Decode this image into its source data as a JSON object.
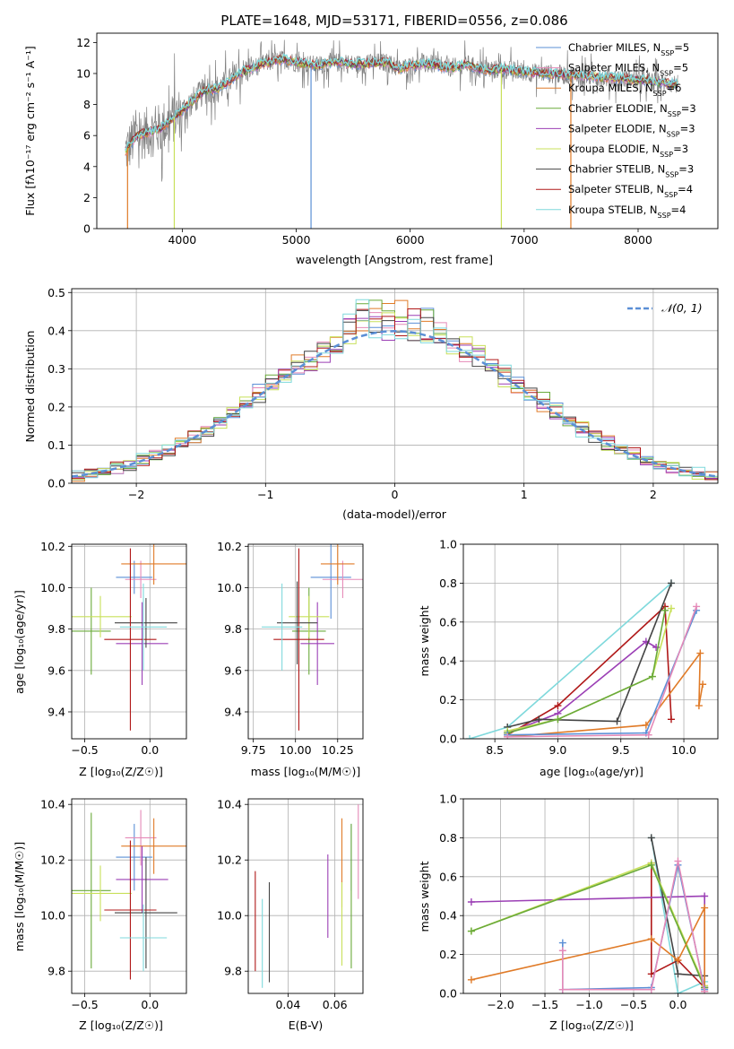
{
  "panels": {
    "spectrum": {
      "title": "PLATE=1648, MJD=53171, FIBERID=0556, z=0.086",
      "xlabel": "wavelength [Angstrom, rest frame]",
      "ylabel": "Flux [fλ10⁻¹⁷ erg cm⁻² s⁻¹ A⁻¹]"
    },
    "residuals": {
      "xlabel": "(data-model)/error",
      "ylabel": "Normed distribution",
      "gauss_label": "𝒩(0, 1)"
    },
    "age_z": {
      "xlabel": "Z [log₁₀(Z/Z☉)]",
      "ylabel": "age  [log₁₀(age/yr)]"
    },
    "age_mass": {
      "xlabel": "mass [log₁₀(M/M☉)]"
    },
    "mw_age": {
      "xlabel": "age  [log₁₀(age/yr)]",
      "ylabel": "mass weight"
    },
    "mass_z": {
      "xlabel": "Z [log₁₀(Z/Z☉)]",
      "ylabel": "mass [log₁₀(M/M☉)]"
    },
    "mass_ebv": {
      "xlabel": "E(B-V)"
    },
    "mw_z": {
      "xlabel": "Z [log₁₀(Z/Z☉)]",
      "ylabel": "mass weight"
    }
  },
  "legend": [
    {
      "label": "Chabrier MILES, N",
      "sub": "SSP",
      "tail": "=5",
      "color": "#5b8fd6"
    },
    {
      "label": "Salpeter MILES, N",
      "sub": "SSP",
      "tail": "=5",
      "color": "#e58ab8"
    },
    {
      "label": "Kroupa MILES, N",
      "sub": "SSP",
      "tail": "=6",
      "color": "#e07b28"
    },
    {
      "label": "Chabrier ELODIE, N",
      "sub": "SSP",
      "tail": "=3",
      "color": "#6aaa3a"
    },
    {
      "label": "Salpeter ELODIE, N",
      "sub": "SSP",
      "tail": "=3",
      "color": "#9b3fb5"
    },
    {
      "label": "Kroupa ELODIE, N",
      "sub": "SSP",
      "tail": "=3",
      "color": "#c8e05a"
    },
    {
      "label": "Chabrier STELIB, N",
      "sub": "SSP",
      "tail": "=3",
      "color": "#444444"
    },
    {
      "label": "Salpeter STELIB, N",
      "sub": "SSP",
      "tail": "=4",
      "color": "#b01818"
    },
    {
      "label": "Kroupa STELIB, N",
      "sub": "SSP",
      "tail": "=4",
      "color": "#7fd9dc"
    }
  ],
  "chart_data": [
    {
      "id": "spectrum",
      "type": "line",
      "xlim": [
        3250,
        8700
      ],
      "ylim": [
        0,
        12.6
      ],
      "xticks": [
        4000,
        5000,
        6000,
        7000,
        8000
      ],
      "yticks": [
        0,
        2,
        4,
        6,
        8,
        10,
        12
      ],
      "grid": false,
      "legend": "right",
      "model_points": [
        [
          3500,
          5.0
        ],
        [
          3600,
          6.0
        ],
        [
          3700,
          6.2
        ],
        [
          3800,
          6.4
        ],
        [
          3900,
          7.0
        ],
        [
          4000,
          7.6
        ],
        [
          4100,
          8.3
        ],
        [
          4200,
          8.9
        ],
        [
          4300,
          9.0
        ],
        [
          4400,
          9.4
        ],
        [
          4500,
          10.0
        ],
        [
          4600,
          10.3
        ],
        [
          4700,
          10.6
        ],
        [
          4800,
          10.8
        ],
        [
          4900,
          10.9
        ],
        [
          5000,
          10.7
        ],
        [
          5100,
          10.6
        ],
        [
          5200,
          10.5
        ],
        [
          5300,
          10.7
        ],
        [
          5400,
          10.7
        ],
        [
          5500,
          10.6
        ],
        [
          5600,
          10.6
        ],
        [
          5700,
          10.7
        ],
        [
          5800,
          10.7
        ],
        [
          5900,
          10.3
        ],
        [
          6000,
          10.5
        ],
        [
          6100,
          10.6
        ],
        [
          6200,
          10.6
        ],
        [
          6300,
          10.4
        ],
        [
          6400,
          10.4
        ],
        [
          6500,
          10.6
        ],
        [
          6600,
          10.3
        ],
        [
          6700,
          10.2
        ],
        [
          6800,
          10.3
        ],
        [
          6900,
          10.2
        ],
        [
          7000,
          10.1
        ],
        [
          7200,
          10.0
        ],
        [
          7400,
          9.9
        ],
        [
          7600,
          9.8
        ],
        [
          7800,
          9.7
        ],
        [
          8000,
          9.6
        ],
        [
          8200,
          9.4
        ],
        [
          8350,
          9.3
        ]
      ],
      "dips": [
        [
          3520,
          0
        ],
        [
          3930,
          0
        ],
        [
          5130,
          0
        ],
        [
          6800,
          0
        ],
        [
          7410,
          0
        ]
      ]
    },
    {
      "id": "residuals",
      "type": "histogram",
      "xlim": [
        -2.5,
        2.5
      ],
      "ylim": [
        0,
        0.51
      ],
      "xticks": [
        -2,
        -1,
        0,
        1,
        2
      ],
      "yticks": [
        0.0,
        0.1,
        0.2,
        0.3,
        0.4,
        0.5
      ],
      "grid": true,
      "legend": "top-right",
      "bin_width": 0.1
    },
    {
      "id": "age_z",
      "type": "errorbar",
      "xlim": [
        -0.6,
        0.28
      ],
      "ylim": [
        9.27,
        10.21
      ],
      "xticks": [
        -0.5,
        0.0
      ],
      "yticks": [
        9.4,
        9.6,
        9.8,
        10.0,
        10.2
      ],
      "points": [
        {
          "x": -0.12,
          "y": 10.05,
          "xerr": 0.14,
          "yerr": 0.08,
          "color": "#5b8fd6"
        },
        {
          "x": -0.07,
          "y": 10.04,
          "xerr": 0.12,
          "yerr": 0.09,
          "color": "#e58ab8"
        },
        {
          "x": 0.03,
          "y": 10.115,
          "xerr": 0.25,
          "yerr": 0.1,
          "color": "#e07b28"
        },
        {
          "x": -0.45,
          "y": 9.79,
          "xerr": 0.15,
          "yerr": 0.21,
          "color": "#6aaa3a"
        },
        {
          "x": -0.06,
          "y": 9.73,
          "xerr": 0.2,
          "yerr": 0.2,
          "color": "#9b3fb5"
        },
        {
          "x": -0.38,
          "y": 9.86,
          "xerr": 0.24,
          "yerr": 0.1,
          "color": "#c8e05a"
        },
        {
          "x": -0.03,
          "y": 9.83,
          "xerr": 0.24,
          "yerr": 0.12,
          "color": "#444444"
        },
        {
          "x": -0.15,
          "y": 9.75,
          "xerr": 0.2,
          "yerr": 0.44,
          "color": "#b01818"
        },
        {
          "x": -0.05,
          "y": 9.81,
          "xerr": 0.18,
          "yerr": 0.21,
          "color": "#7fd9dc"
        }
      ]
    },
    {
      "id": "age_mass",
      "type": "errorbar",
      "xlim": [
        9.72,
        10.4
      ],
      "ylim": [
        9.27,
        10.21
      ],
      "xticks": [
        9.75,
        10.0,
        10.25
      ],
      "yticks": [
        9.4,
        9.6,
        9.8,
        10.0,
        10.2
      ],
      "points": [
        {
          "x": 10.21,
          "y": 10.05,
          "xerr": 0.12,
          "yerr": 0.2,
          "color": "#5b8fd6"
        },
        {
          "x": 10.28,
          "y": 10.04,
          "xerr": 0.12,
          "yerr": 0.09,
          "color": "#e58ab8"
        },
        {
          "x": 10.25,
          "y": 10.115,
          "xerr": 0.1,
          "yerr": 0.1,
          "color": "#e07b28"
        },
        {
          "x": 10.08,
          "y": 9.79,
          "xerr": 0.1,
          "yerr": 0.21,
          "color": "#6aaa3a"
        },
        {
          "x": 10.13,
          "y": 9.73,
          "xerr": 0.1,
          "yerr": 0.2,
          "color": "#9b3fb5"
        },
        {
          "x": 10.08,
          "y": 9.86,
          "xerr": 0.12,
          "yerr": 0.1,
          "color": "#c8e05a"
        },
        {
          "x": 10.01,
          "y": 9.83,
          "xerr": 0.12,
          "yerr": 0.2,
          "color": "#444444"
        },
        {
          "x": 10.02,
          "y": 9.75,
          "xerr": 0.15,
          "yerr": 0.44,
          "color": "#b01818"
        },
        {
          "x": 9.92,
          "y": 9.81,
          "xerr": 0.12,
          "yerr": 0.21,
          "color": "#7fd9dc"
        }
      ]
    },
    {
      "id": "mw_age",
      "type": "line",
      "xlim": [
        8.25,
        10.27
      ],
      "ylim": [
        0,
        1.0
      ],
      "xticks": [
        8.5,
        9.0,
        9.5,
        10.0
      ],
      "yticks": [
        0.0,
        0.2,
        0.4,
        0.6,
        0.8,
        1.0
      ],
      "series": [
        {
          "color": "#7fd9dc",
          "x": [
            8.3,
            8.6,
            9.9
          ],
          "y": [
            0.0,
            0.06,
            0.8
          ]
        },
        {
          "color": "#b01818",
          "x": [
            8.6,
            9.0,
            9.85,
            9.9
          ],
          "y": [
            0.02,
            0.17,
            0.68,
            0.1
          ]
        },
        {
          "color": "#9b3fb5",
          "x": [
            8.6,
            9.0,
            9.7,
            9.78
          ],
          "y": [
            0.03,
            0.13,
            0.5,
            0.47
          ]
        },
        {
          "color": "#444444",
          "x": [
            8.6,
            8.85,
            9.47,
            9.9
          ],
          "y": [
            0.06,
            0.1,
            0.09,
            0.8
          ]
        },
        {
          "color": "#c8e05a",
          "x": [
            8.6,
            9.0,
            9.75,
            9.9
          ],
          "y": [
            0.04,
            0.1,
            0.32,
            0.67
          ]
        },
        {
          "color": "#6aaa3a",
          "x": [
            8.6,
            9.0,
            9.75,
            9.85
          ],
          "y": [
            0.03,
            0.1,
            0.32,
            0.66
          ]
        },
        {
          "color": "#e07b28",
          "x": [
            8.6,
            9.7,
            10.13,
            10.12,
            10.15
          ],
          "y": [
            0.01,
            0.07,
            0.44,
            0.17,
            0.28
          ]
        },
        {
          "color": "#5b8fd6",
          "x": [
            8.6,
            9.7,
            10.1
          ],
          "y": [
            0.02,
            0.03,
            0.66
          ]
        },
        {
          "color": "#e58ab8",
          "x": [
            8.6,
            9.72,
            10.1
          ],
          "y": [
            0.01,
            0.02,
            0.68
          ]
        }
      ]
    },
    {
      "id": "mass_z",
      "type": "errorbar",
      "xlim": [
        -0.6,
        0.28
      ],
      "ylim": [
        9.72,
        10.42
      ],
      "xticks": [
        -0.5,
        0.0
      ],
      "yticks": [
        9.8,
        10.0,
        10.2,
        10.4
      ],
      "points": [
        {
          "x": -0.12,
          "y": 10.21,
          "xerr": 0.14,
          "yerr": 0.12,
          "color": "#5b8fd6"
        },
        {
          "x": -0.07,
          "y": 10.28,
          "xerr": 0.12,
          "yerr": 0.1,
          "color": "#e58ab8"
        },
        {
          "x": 0.03,
          "y": 10.25,
          "xerr": 0.25,
          "yerr": 0.1,
          "color": "#e07b28"
        },
        {
          "x": -0.45,
          "y": 10.09,
          "xerr": 0.15,
          "yerr": 0.28,
          "color": "#6aaa3a"
        },
        {
          "x": -0.06,
          "y": 10.13,
          "xerr": 0.2,
          "yerr": 0.12,
          "color": "#9b3fb5"
        },
        {
          "x": -0.38,
          "y": 10.08,
          "xerr": 0.24,
          "yerr": 0.1,
          "color": "#c8e05a"
        },
        {
          "x": -0.03,
          "y": 10.01,
          "xerr": 0.24,
          "yerr": 0.2,
          "color": "#444444"
        },
        {
          "x": -0.15,
          "y": 10.02,
          "xerr": 0.2,
          "yerr": 0.25,
          "color": "#b01818"
        },
        {
          "x": -0.05,
          "y": 9.92,
          "xerr": 0.18,
          "yerr": 0.12,
          "color": "#7fd9dc"
        }
      ]
    },
    {
      "id": "mass_ebv",
      "type": "errorbar",
      "xlim": [
        0.023,
        0.072
      ],
      "ylim": [
        9.72,
        10.42
      ],
      "xticks": [
        0.04,
        0.06
      ],
      "yticks": [
        9.8,
        10.0,
        10.2,
        10.4
      ],
      "points": [
        {
          "x": 0.067,
          "y": 10.21,
          "yerr": 0.12,
          "color": "#5b8fd6"
        },
        {
          "x": 0.07,
          "y": 10.23,
          "yerr": 0.17,
          "color": "#e58ab8"
        },
        {
          "x": 0.063,
          "y": 10.19,
          "yerr": 0.16,
          "color": "#e07b28"
        },
        {
          "x": 0.067,
          "y": 10.07,
          "yerr": 0.26,
          "color": "#6aaa3a"
        },
        {
          "x": 0.057,
          "y": 10.07,
          "yerr": 0.15,
          "color": "#9b3fb5"
        },
        {
          "x": 0.063,
          "y": 9.97,
          "yerr": 0.15,
          "color": "#c8e05a"
        },
        {
          "x": 0.032,
          "y": 9.94,
          "yerr": 0.18,
          "color": "#444444"
        },
        {
          "x": 0.026,
          "y": 9.98,
          "yerr": 0.18,
          "color": "#b01818"
        },
        {
          "x": 0.029,
          "y": 9.9,
          "yerr": 0.16,
          "color": "#7fd9dc"
        }
      ]
    },
    {
      "id": "mw_z",
      "type": "line",
      "xlim": [
        -2.42,
        0.45
      ],
      "ylim": [
        0,
        1.0
      ],
      "xticks": [
        -2.0,
        -1.5,
        -1.0,
        -0.5,
        0.0
      ],
      "yticks": [
        0.0,
        0.2,
        0.4,
        0.6,
        0.8,
        1.0
      ],
      "series": [
        {
          "color": "#7fd9dc",
          "x": [
            -0.3,
            0.0,
            0.3
          ],
          "y": [
            0.8,
            0.0,
            0.06
          ]
        },
        {
          "color": "#b01818",
          "x": [
            -0.3,
            -0.3,
            0.0,
            0.3
          ],
          "y": [
            0.67,
            0.1,
            0.17,
            0.03
          ]
        },
        {
          "color": "#9b3fb5",
          "x": [
            -2.33,
            0.3,
            0.3
          ],
          "y": [
            0.47,
            0.5,
            0.03
          ]
        },
        {
          "color": "#444444",
          "x": [
            -0.3,
            0.0,
            0.3
          ],
          "y": [
            0.8,
            0.1,
            0.09
          ]
        },
        {
          "color": "#c8e05a",
          "x": [
            -2.33,
            -0.3,
            0.3
          ],
          "y": [
            0.32,
            0.67,
            0.04
          ]
        },
        {
          "color": "#6aaa3a",
          "x": [
            -2.33,
            -0.3,
            0.3
          ],
          "y": [
            0.32,
            0.66,
            0.03
          ]
        },
        {
          "color": "#e07b28",
          "x": [
            -2.33,
            -0.3,
            0.0,
            0.3,
            0.3
          ],
          "y": [
            0.07,
            0.28,
            0.17,
            0.44,
            0.01
          ]
        },
        {
          "color": "#5b8fd6",
          "x": [
            -1.3,
            -1.3,
            -0.3,
            0.0,
            0.3
          ],
          "y": [
            0.26,
            0.02,
            0.03,
            0.66,
            0.02
          ]
        },
        {
          "color": "#e58ab8",
          "x": [
            -1.3,
            -1.3,
            -0.3,
            0.0,
            0.3
          ],
          "y": [
            0.22,
            0.02,
            0.02,
            0.68,
            0.01
          ]
        }
      ]
    }
  ]
}
